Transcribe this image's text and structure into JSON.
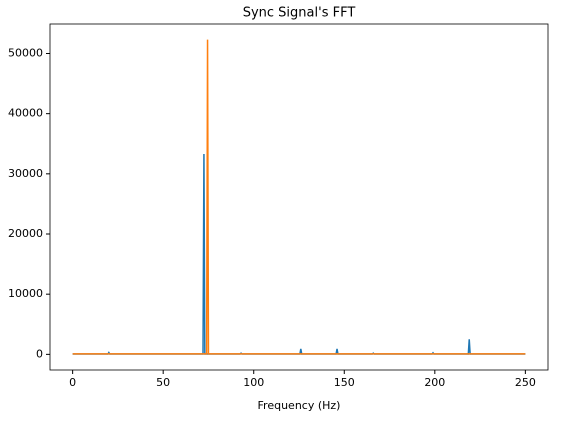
{
  "chart_data": {
    "type": "line",
    "title": "Sync Signal's FFT",
    "x_label": "Frequency (Hz)",
    "series": [
      {
        "color": "#1f77b4",
        "x": [
          0,
          19.5,
          20,
          20.5,
          72,
          72.5,
          73,
          92.5,
          93,
          93.5,
          125.5,
          126,
          126.5,
          145.5,
          146,
          146.5,
          165.5,
          166,
          166.5,
          198.5,
          199,
          199.5,
          218.5,
          219,
          219.5,
          250
        ],
        "values": [
          60,
          60,
          300,
          60,
          60,
          33300,
          60,
          60,
          200,
          60,
          60,
          900,
          60,
          60,
          900,
          60,
          60,
          200,
          60,
          60,
          250,
          60,
          60,
          2500,
          60,
          60
        ]
      },
      {
        "color": "#ff7f0e",
        "x": [
          0,
          74,
          74.5,
          75,
          250
        ],
        "values": [
          80,
          80,
          52300,
          80,
          80
        ]
      }
    ],
    "xlim": [
      -12.5,
      262.5
    ],
    "xticks": [
      0,
      50,
      100,
      150,
      200,
      250
    ],
    "ylim": [
      -2600,
      54900
    ],
    "yticks": [
      0,
      10000,
      20000,
      30000,
      40000,
      50000
    ]
  }
}
